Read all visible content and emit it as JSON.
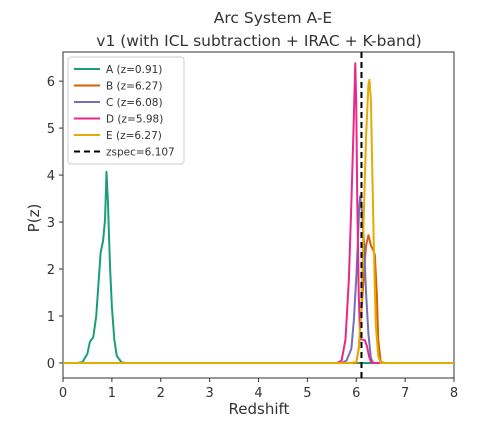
{
  "chart_data": {
    "type": "line",
    "title_lines": [
      "Arc System A-E",
      "v1 (with ICL subtraction + IRAC + K-band)"
    ],
    "xlabel": "Redshift",
    "ylabel": "P(z)",
    "xlim": [
      0,
      8
    ],
    "ylim": [
      -0.32,
      6.62
    ],
    "xticks": [
      0,
      1,
      2,
      3,
      4,
      5,
      6,
      7,
      8
    ],
    "yticks": [
      0,
      1,
      2,
      3,
      4,
      5,
      6
    ],
    "grid": false,
    "legend_position": "top-left",
    "series": [
      {
        "name": "A (z=0.91)",
        "color": "#1b9e77",
        "points": [
          [
            0,
            0
          ],
          [
            0.3,
            0
          ],
          [
            0.4,
            0.02
          ],
          [
            0.5,
            0.2
          ],
          [
            0.55,
            0.45
          ],
          [
            0.62,
            0.55
          ],
          [
            0.68,
            1.0
          ],
          [
            0.72,
            1.6
          ],
          [
            0.77,
            2.35
          ],
          [
            0.82,
            2.6
          ],
          [
            0.86,
            3.05
          ],
          [
            0.89,
            4.07
          ],
          [
            0.92,
            3.4
          ],
          [
            0.96,
            2.1
          ],
          [
            1.0,
            1.2
          ],
          [
            1.05,
            0.5
          ],
          [
            1.1,
            0.15
          ],
          [
            1.2,
            0.01
          ],
          [
            1.3,
            0
          ],
          [
            8,
            0
          ]
        ]
      },
      {
        "name": "B (z=6.27)",
        "color": "#d95f02",
        "points": [
          [
            0,
            0
          ],
          [
            5.8,
            0
          ],
          [
            5.9,
            0
          ],
          [
            6.0,
            0
          ],
          [
            6.05,
            0.3
          ],
          [
            6.1,
            1.0
          ],
          [
            6.15,
            1.8
          ],
          [
            6.2,
            2.5
          ],
          [
            6.25,
            2.72
          ],
          [
            6.3,
            2.5
          ],
          [
            6.35,
            2.4
          ],
          [
            6.38,
            2.3
          ],
          [
            6.42,
            1.5
          ],
          [
            6.45,
            0.5
          ],
          [
            6.5,
            0.02
          ],
          [
            6.6,
            0
          ],
          [
            8,
            0
          ]
        ]
      },
      {
        "name": "C (z=6.08)",
        "color": "#7570b3",
        "points": [
          [
            0,
            0
          ],
          [
            5.7,
            0
          ],
          [
            5.8,
            0.05
          ],
          [
            5.9,
            0.3
          ],
          [
            5.95,
            0.9
          ],
          [
            6.0,
            1.8
          ],
          [
            6.03,
            2.5
          ],
          [
            6.06,
            3.3
          ],
          [
            6.08,
            3.55
          ],
          [
            6.12,
            3.2
          ],
          [
            6.16,
            2.5
          ],
          [
            6.2,
            1.5
          ],
          [
            6.25,
            0.6
          ],
          [
            6.3,
            0.1
          ],
          [
            6.35,
            0
          ],
          [
            8,
            0
          ]
        ]
      },
      {
        "name": "D (z=5.98)",
        "color": "#e7298a",
        "points": [
          [
            0,
            0
          ],
          [
            5.6,
            0
          ],
          [
            5.7,
            0.05
          ],
          [
            5.78,
            0.5
          ],
          [
            5.85,
            1.8
          ],
          [
            5.9,
            3.4
          ],
          [
            5.95,
            5.2
          ],
          [
            5.98,
            6.38
          ],
          [
            6.0,
            5.5
          ],
          [
            6.02,
            3.5
          ],
          [
            6.05,
            1.5
          ],
          [
            6.08,
            0.5
          ],
          [
            6.12,
            0.5
          ],
          [
            6.18,
            0.48
          ],
          [
            6.22,
            0.35
          ],
          [
            6.26,
            0.15
          ],
          [
            6.3,
            0.02
          ],
          [
            6.35,
            0
          ],
          [
            8,
            0
          ]
        ]
      },
      {
        "name": "E (z=6.27)",
        "color": "#e6ab02",
        "points": [
          [
            0,
            0
          ],
          [
            5.9,
            0
          ],
          [
            6.0,
            0.02
          ],
          [
            6.05,
            0.3
          ],
          [
            6.1,
            1.0
          ],
          [
            6.15,
            3.0
          ],
          [
            6.2,
            4.8
          ],
          [
            6.25,
            5.95
          ],
          [
            6.27,
            6.03
          ],
          [
            6.3,
            5.6
          ],
          [
            6.33,
            4.0
          ],
          [
            6.37,
            2.0
          ],
          [
            6.4,
            0.8
          ],
          [
            6.45,
            0.15
          ],
          [
            6.5,
            0
          ],
          [
            8,
            0
          ]
        ]
      }
    ],
    "reference_line": {
      "name": "zspec=6.107",
      "x": 6.107,
      "color": "#000000",
      "style": "dashed"
    }
  }
}
